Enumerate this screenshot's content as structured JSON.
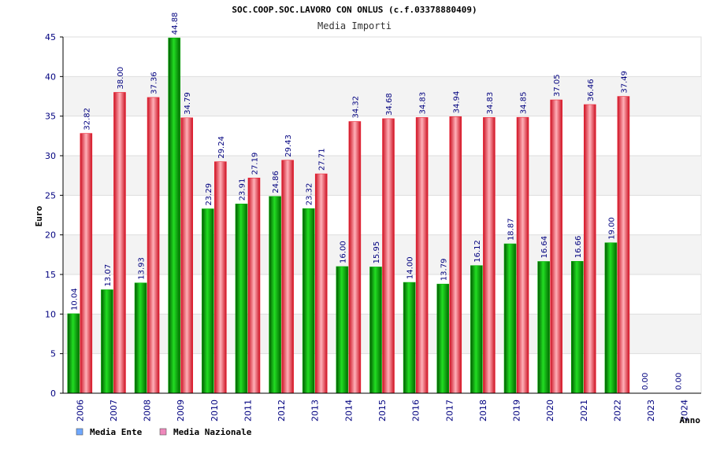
{
  "chart_data": {
    "type": "bar",
    "title": "SOC.COOP.SOC.LAVORO CON ONLUS (c.f.03378880409)",
    "subtitle": "Media Importi",
    "xlabel": "Anno",
    "ylabel": "Euro",
    "ylim": [
      0,
      45
    ],
    "yticks": [
      0,
      5,
      10,
      15,
      20,
      25,
      30,
      35,
      40,
      45
    ],
    "grid": true,
    "legend_position": "bottom-left",
    "categories": [
      "2006",
      "2007",
      "2008",
      "2009",
      "2010",
      "2011",
      "2012",
      "2013",
      "2014",
      "2015",
      "2016",
      "2017",
      "2018",
      "2019",
      "2020",
      "2021",
      "2022",
      "2023",
      "2024"
    ],
    "series": [
      {
        "name": "Media Ente",
        "color": "#00b000",
        "legend_color": "#6fa8ff",
        "values": [
          10.04,
          13.07,
          13.93,
          44.88,
          23.29,
          23.91,
          24.86,
          23.32,
          16.0,
          15.95,
          14.0,
          13.79,
          16.12,
          18.87,
          16.64,
          16.66,
          19.0,
          0.0,
          0.0
        ],
        "labels": [
          "10.04",
          "13.07",
          "13.93",
          "44.88",
          "23.29",
          "23.91",
          "24.86",
          "23.32",
          "16.00",
          "15.95",
          "14.00",
          "13.79",
          "16.12",
          "18.87",
          "16.64",
          "16.66",
          "19.00",
          "0.00",
          "0.00"
        ]
      },
      {
        "name": "Media Nazionale",
        "color": "#ee2233",
        "legend_color": "#ee88bb",
        "values": [
          32.82,
          38.0,
          37.36,
          34.79,
          29.24,
          27.19,
          29.43,
          27.71,
          34.32,
          34.68,
          34.83,
          34.94,
          34.83,
          34.85,
          37.05,
          36.46,
          37.49,
          null,
          null
        ],
        "labels": [
          "32.82",
          "38.00",
          "37.36",
          "34.79",
          "29.24",
          "27.19",
          "29.43",
          "27.71",
          "34.32",
          "34.68",
          "34.83",
          "34.94",
          "34.83",
          "34.85",
          "37.05",
          "36.46",
          "37.49",
          "",
          ""
        ]
      }
    ]
  }
}
